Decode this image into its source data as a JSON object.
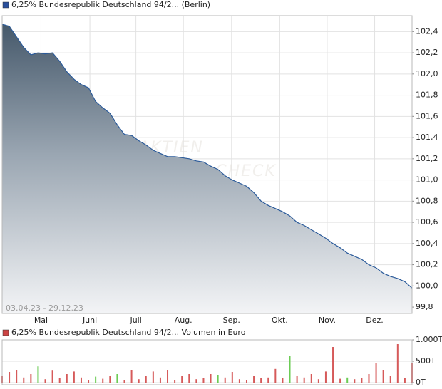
{
  "chart_data": [
    {
      "type": "area",
      "legend": "6,25% Bundesrepublik Deutschland 94/2... (Berlin)",
      "legend_color": "#2a4f9c",
      "date_range": "03.04.23 - 29.12.23",
      "watermark": [
        "AKTIEN",
        "CHECK"
      ],
      "color": "#2a5a9a",
      "values": [
        102.47,
        102.45,
        102.35,
        102.25,
        102.18,
        102.2,
        102.19,
        102.2,
        102.12,
        102.02,
        101.95,
        101.9,
        101.87,
        101.74,
        101.68,
        101.63,
        101.52,
        101.43,
        101.42,
        101.37,
        101.33,
        101.28,
        101.25,
        101.22,
        101.22,
        101.21,
        101.2,
        101.18,
        101.17,
        101.13,
        101.1,
        101.04,
        101.0,
        100.97,
        100.94,
        100.88,
        100.8,
        100.76,
        100.73,
        100.7,
        100.66,
        100.6,
        100.57,
        100.53,
        100.49,
        100.45,
        100.4,
        100.36,
        100.31,
        100.28,
        100.25,
        100.2,
        100.17,
        100.12,
        100.09,
        100.07,
        100.04,
        99.98
      ],
      "xlim": [
        0,
        57
      ],
      "xticks": [
        {
          "value": 5.4,
          "label": "Mai"
        },
        {
          "value": 12.2,
          "label": "Juni"
        },
        {
          "value": 18.6,
          "label": "Juli"
        },
        {
          "value": 25.2,
          "label": "Aug."
        },
        {
          "value": 31.9,
          "label": "Sep."
        },
        {
          "value": 38.6,
          "label": "Okt."
        },
        {
          "value": 45.2,
          "label": "Nov."
        },
        {
          "value": 51.8,
          "label": "Dez."
        }
      ],
      "ylim": [
        99.74,
        102.55
      ],
      "yticks": [
        {
          "value": 99.8,
          "label": "99,8"
        },
        {
          "value": 100.0,
          "label": "100,0"
        },
        {
          "value": 100.2,
          "label": "100,2"
        },
        {
          "value": 100.4,
          "label": "100,4"
        },
        {
          "value": 100.6,
          "label": "100,6"
        },
        {
          "value": 100.8,
          "label": "100,8"
        },
        {
          "value": 101.0,
          "label": "101,0"
        },
        {
          "value": 101.2,
          "label": "101,2"
        },
        {
          "value": 101.4,
          "label": "101,4"
        },
        {
          "value": 101.6,
          "label": "101,6"
        },
        {
          "value": 101.8,
          "label": "101,8"
        },
        {
          "value": 102.0,
          "label": "102,0"
        },
        {
          "value": 102.2,
          "label": "102,2"
        },
        {
          "value": 102.4,
          "label": "102,4"
        }
      ],
      "grid": true
    },
    {
      "type": "bar",
      "legend": "6,25% Bundesrepublik Deutschland 94/2... Volumen in Euro",
      "legend_color": "#cc4444",
      "values": [
        150,
        250,
        300,
        120,
        200,
        380,
        80,
        280,
        100,
        200,
        260,
        120,
        60,
        140,
        90,
        150,
        200,
        60,
        300,
        80,
        150,
        260,
        120,
        300,
        60,
        150,
        200,
        80,
        100,
        200,
        180,
        120,
        250,
        80,
        60,
        150,
        100,
        120,
        320,
        100,
        630,
        150,
        120,
        200,
        80,
        260,
        833,
        90,
        120,
        80,
        100,
        200,
        450,
        300,
        150,
        900,
        100,
        450
      ],
      "colors": [
        "#d65a5a",
        "#d65a5a",
        "#d65a5a",
        "#d65a5a",
        "#d65a5a",
        "#6ccc55",
        "#d65a5a",
        "#d65a5a",
        "#d65a5a",
        "#d65a5a",
        "#d65a5a",
        "#d65a5a",
        "#d65a5a",
        "#6ccc55",
        "#d65a5a",
        "#d65a5a",
        "#6ccc55",
        "#d65a5a",
        "#d65a5a",
        "#d65a5a",
        "#d65a5a",
        "#d65a5a",
        "#d65a5a",
        "#d65a5a",
        "#d65a5a",
        "#d65a5a",
        "#d65a5a",
        "#d65a5a",
        "#d65a5a",
        "#d65a5a",
        "#6ccc55",
        "#d65a5a",
        "#d65a5a",
        "#d65a5a",
        "#d65a5a",
        "#d65a5a",
        "#d65a5a",
        "#d65a5a",
        "#d65a5a",
        "#d65a5a",
        "#6ccc55",
        "#d65a5a",
        "#d65a5a",
        "#d65a5a",
        "#d65a5a",
        "#d65a5a",
        "#d65a5a",
        "#d65a5a",
        "#6ccc55",
        "#d65a5a",
        "#d65a5a",
        "#d65a5a",
        "#d65a5a",
        "#d65a5a",
        "#d65a5a",
        "#d65a5a",
        "#d65a5a",
        "#d65a5a"
      ],
      "xlim": [
        0,
        57
      ],
      "ylim": [
        -50,
        1000
      ],
      "yticks": [
        {
          "value": 0,
          "label": "0T"
        },
        {
          "value": 500,
          "label": "500T"
        },
        {
          "value": 1000,
          "label": "1.000T"
        }
      ],
      "grid": true
    }
  ]
}
